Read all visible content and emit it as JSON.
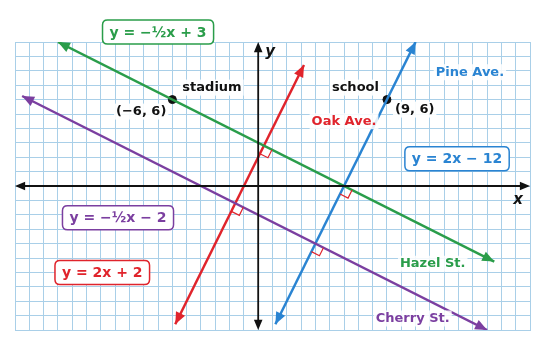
{
  "chart_data": {
    "type": "line",
    "grid": true,
    "tick_labels": false,
    "x_label": "x",
    "y_label": "y",
    "xlim": [
      -17,
      19
    ],
    "ylim": [
      -10,
      10
    ],
    "xticks": [
      -17,
      -16,
      -15,
      -14,
      -13,
      -12,
      -11,
      -10,
      -9,
      -8,
      -7,
      -6,
      -5,
      -4,
      -3,
      -2,
      -1,
      0,
      1,
      2,
      3,
      4,
      5,
      6,
      7,
      8,
      9,
      10,
      11,
      12,
      13,
      14,
      15,
      16,
      17,
      18,
      19
    ],
    "yticks": [
      -10,
      -9,
      -8,
      -7,
      -6,
      -5,
      -4,
      -3,
      -2,
      -1,
      0,
      1,
      2,
      3,
      4,
      5,
      6,
      7,
      8,
      9,
      10
    ],
    "series": [
      {
        "name": "Hazel St.",
        "equation": "y = −½x + 3",
        "color": "#2a9d4a",
        "x": [
          -14,
          16.5
        ],
        "values": [
          10,
          -5.25
        ]
      },
      {
        "name": "Cherry St.",
        "equation": "y = −½x − 2",
        "color": "#7b3fa0",
        "x": [
          -16.5,
          16
        ],
        "values": [
          6.25,
          -10
        ]
      },
      {
        "name": "Oak Ave.",
        "equation": "y = 2x + 2",
        "color": "#e0242c",
        "x": [
          -5.8,
          3.2
        ],
        "values": [
          -9.6,
          8.4
        ]
      },
      {
        "name": "Pine Ave.",
        "equation": "y = 2x − 12",
        "color": "#2a84d2",
        "x": [
          1.2,
          11
        ],
        "values": [
          -9.6,
          10
        ]
      }
    ],
    "points": {
      "marker": "circle",
      "color": "#111111",
      "items": [
        {
          "name": "stadium",
          "label": "(−6, 6)",
          "x": -6,
          "y": 6
        },
        {
          "name": "school",
          "label": "(9, 6)",
          "x": 9,
          "y": 6
        }
      ]
    }
  }
}
